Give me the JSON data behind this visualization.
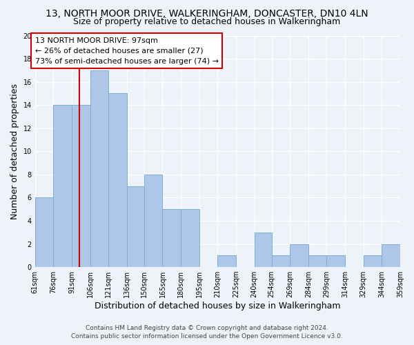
{
  "title": "13, NORTH MOOR DRIVE, WALKERINGHAM, DONCASTER, DN10 4LN",
  "subtitle": "Size of property relative to detached houses in Walkeringham",
  "xlabel": "Distribution of detached houses by size in Walkeringham",
  "ylabel": "Number of detached properties",
  "bar_color": "#aec6e8",
  "bar_edge_color": "#7bafd4",
  "vline_color": "#cc0000",
  "vline_x": 97,
  "annotation_text_line1": "13 NORTH MOOR DRIVE: 97sqm",
  "annotation_text_line2": "← 26% of detached houses are smaller (27)",
  "annotation_text_line3": "73% of semi-detached houses are larger (74) →",
  "bins": [
    61,
    76,
    91,
    106,
    121,
    136,
    150,
    165,
    180,
    195,
    210,
    225,
    240,
    254,
    269,
    284,
    299,
    314,
    329,
    344,
    359
  ],
  "counts": [
    6,
    14,
    14,
    17,
    15,
    7,
    8,
    5,
    5,
    0,
    1,
    0,
    3,
    1,
    2,
    1,
    1,
    0,
    1,
    2
  ],
  "tick_labels": [
    "61sqm",
    "76sqm",
    "91sqm",
    "106sqm",
    "121sqm",
    "136sqm",
    "150sqm",
    "165sqm",
    "180sqm",
    "195sqm",
    "210sqm",
    "225sqm",
    "240sqm",
    "254sqm",
    "269sqm",
    "284sqm",
    "299sqm",
    "314sqm",
    "329sqm",
    "344sqm",
    "359sqm"
  ],
  "ylim": [
    0,
    20
  ],
  "yticks": [
    0,
    2,
    4,
    6,
    8,
    10,
    12,
    14,
    16,
    18,
    20
  ],
  "footer_line1": "Contains HM Land Registry data © Crown copyright and database right 2024.",
  "footer_line2": "Contains public sector information licensed under the Open Government Licence v3.0.",
  "background_color": "#eef2f9",
  "grid_color": "#ffffff",
  "title_fontsize": 10,
  "subtitle_fontsize": 9,
  "axis_label_fontsize": 9,
  "tick_fontsize": 7,
  "annotation_fontsize": 8,
  "footer_fontsize": 6.5
}
